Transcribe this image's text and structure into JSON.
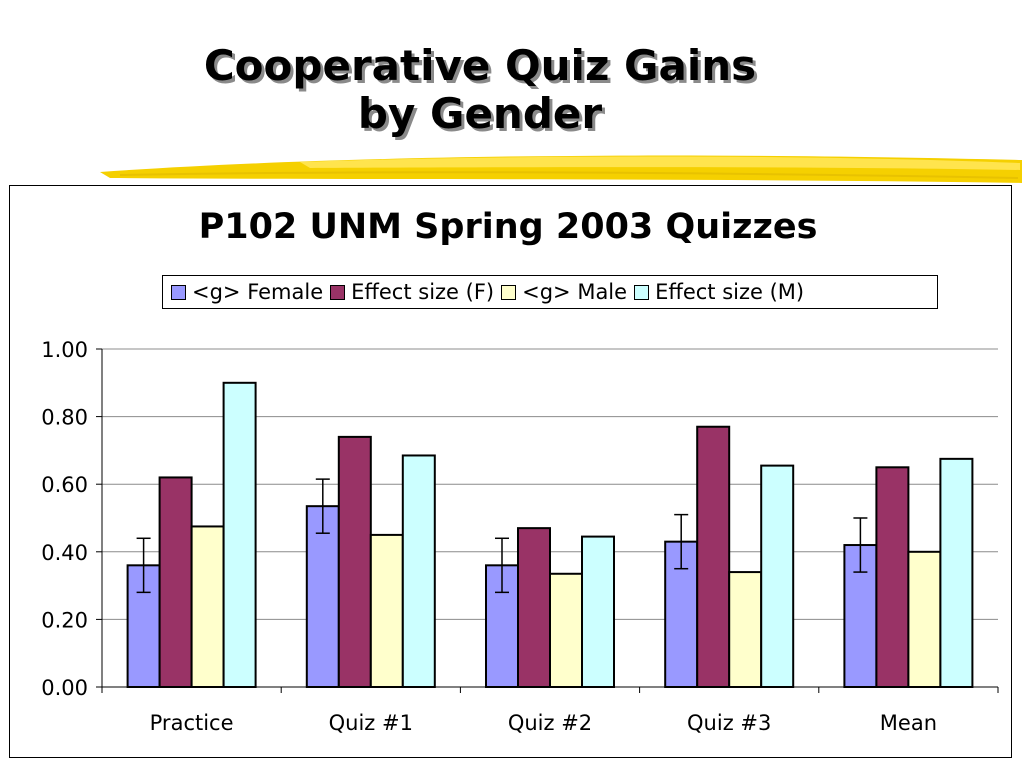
{
  "slide": {
    "title_line1": "Cooperative Quiz Gains",
    "title_line2": "by Gender"
  },
  "chart_data": {
    "type": "bar",
    "title": "P102 UNM Spring 2003 Quizzes",
    "xlabel": "",
    "ylabel": "",
    "categories": [
      "Practice",
      "Quiz #1",
      "Quiz #2",
      "Quiz #3",
      "Mean"
    ],
    "ylim": [
      0,
      1
    ],
    "yticks": [
      "0.00",
      "0.20",
      "0.40",
      "0.60",
      "0.80",
      "1.00"
    ],
    "ytick_values": [
      0,
      0.2,
      0.4,
      0.6,
      0.8,
      1.0
    ],
    "grid": "horizontal",
    "legend_position": "top",
    "series": [
      {
        "name": "<g> Female",
        "color": "#9999ff",
        "values": [
          0.36,
          0.535,
          0.36,
          0.43,
          0.42
        ],
        "error": [
          0.08,
          0.08,
          0.08,
          0.08,
          0.08
        ]
      },
      {
        "name": "Effect size (F)",
        "color": "#993366",
        "values": [
          0.62,
          0.74,
          0.47,
          0.77,
          0.65
        ]
      },
      {
        "name": "<g> Male",
        "color": "#ffffcc",
        "values": [
          0.475,
          0.45,
          0.335,
          0.34,
          0.4
        ]
      },
      {
        "name": "Effect size (M)",
        "color": "#ccffff",
        "values": [
          0.9,
          0.685,
          0.445,
          0.655,
          0.675
        ]
      }
    ]
  }
}
